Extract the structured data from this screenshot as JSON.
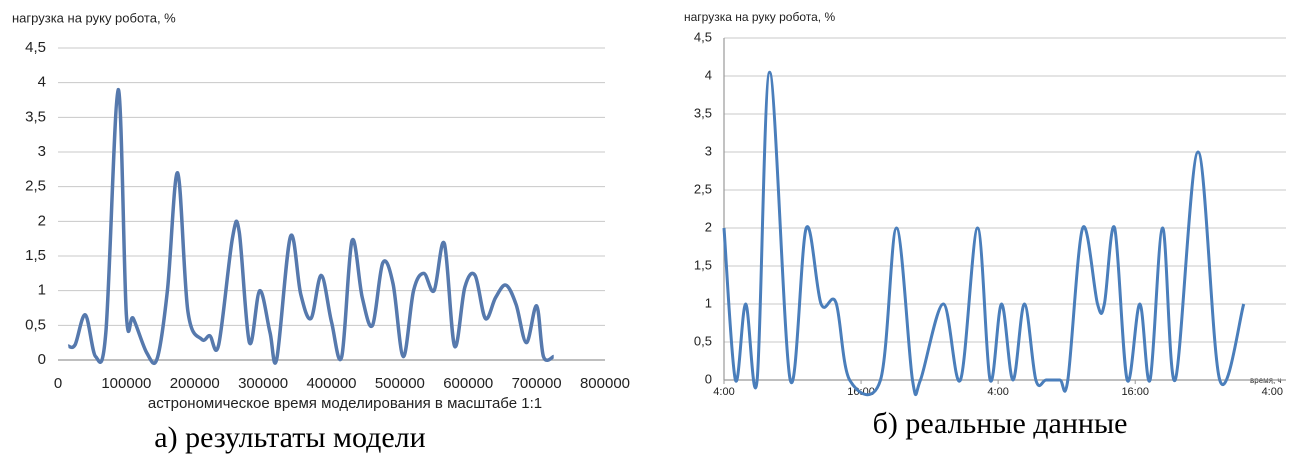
{
  "chart_data": [
    {
      "type": "line",
      "y_label": "нагрузка на руку робота, %",
      "x_label": "астрономическое время  моделирования в масштабе 1:1",
      "caption": "а) результаты модели",
      "color": "#5679ad",
      "grid": true,
      "xlim": [
        0,
        800000
      ],
      "xticks": [
        0,
        100000,
        200000,
        300000,
        400000,
        500000,
        600000,
        700000,
        800000
      ],
      "ylim": [
        0,
        4.5
      ],
      "yticks": [
        0,
        {
          "value": 0.5,
          "label": "0,5"
        },
        1,
        {
          "value": 1.5,
          "label": "1,5"
        },
        2,
        {
          "value": 2.5,
          "label": "2,5"
        },
        3,
        {
          "value": 3.5,
          "label": "3,5"
        },
        4,
        {
          "value": 4.5,
          "label": "4,5"
        }
      ],
      "x": [
        15000,
        25000,
        40000,
        55000,
        70000,
        88000,
        100000,
        110000,
        130000,
        145000,
        160000,
        175000,
        190000,
        210000,
        222000,
        235000,
        255000,
        265000,
        280000,
        295000,
        310000,
        320000,
        340000,
        355000,
        370000,
        385000,
        400000,
        415000,
        430000,
        445000,
        460000,
        475000,
        490000,
        505000,
        520000,
        535000,
        550000,
        565000,
        580000,
        595000,
        610000,
        625000,
        640000,
        655000,
        670000,
        685000,
        700000,
        710000,
        725000
      ],
      "values": [
        0.2,
        0.22,
        0.65,
        0.05,
        0.4,
        3.9,
        0.65,
        0.6,
        0.1,
        0.02,
        1.0,
        2.7,
        0.7,
        0.3,
        0.35,
        0.22,
        1.75,
        1.85,
        0.25,
        1.0,
        0.4,
        0.02,
        1.78,
        0.95,
        0.6,
        1.22,
        0.55,
        0.05,
        1.72,
        0.9,
        0.5,
        1.4,
        1.1,
        0.05,
        1.0,
        1.25,
        1.0,
        1.68,
        0.2,
        1.05,
        1.22,
        0.6,
        0.9,
        1.08,
        0.8,
        0.25,
        0.78,
        0.05,
        0.05
      ]
    },
    {
      "type": "line",
      "y_label": "нагрузка на руку робота, %",
      "x_label": "время, ч",
      "caption": "б) реальные данные",
      "color": "#4a7ebb",
      "grid": true,
      "xlim": [
        0,
        48.5
      ],
      "xticks": [
        {
          "value": 0,
          "label": "4:00"
        },
        {
          "value": 12,
          "label": "16:00"
        },
        {
          "value": 24,
          "label": "4:00"
        },
        {
          "value": 36,
          "label": "16:00"
        },
        {
          "value": 48,
          "label": "4:00"
        }
      ],
      "ylim": [
        0,
        4.5
      ],
      "yticks": [
        0,
        {
          "value": 0.5,
          "label": "0,5"
        },
        1,
        {
          "value": 1.5,
          "label": "1,5"
        },
        2,
        {
          "value": 2.5,
          "label": "2,5"
        },
        3,
        {
          "value": 3.5,
          "label": "3,5"
        },
        4,
        {
          "value": 4.5,
          "label": "4,5"
        }
      ],
      "x": [
        0,
        1,
        1.9,
        2.9,
        4.0,
        5.8,
        7.2,
        8.5,
        9.8,
        11,
        13.7,
        15.1,
        16.5,
        17.2,
        19.2,
        20.7,
        22.2,
        23.3,
        24.3,
        25.3,
        26.3,
        27.3,
        28.2,
        29.4,
        30.1,
        31.4,
        32.7,
        33.3,
        34.2,
        35.3,
        36.4,
        37.3,
        38.4,
        39.5,
        41.5,
        43.4,
        45.5
      ],
      "values": [
        2,
        0,
        1,
        0,
        4.05,
        0,
        2,
        1,
        1.02,
        0,
        0,
        2,
        0,
        0,
        1,
        0,
        2,
        0,
        1,
        0,
        1,
        0,
        0,
        0,
        0,
        2,
        1,
        1,
        2,
        0,
        1,
        0,
        2,
        0,
        3,
        0,
        1
      ]
    }
  ]
}
